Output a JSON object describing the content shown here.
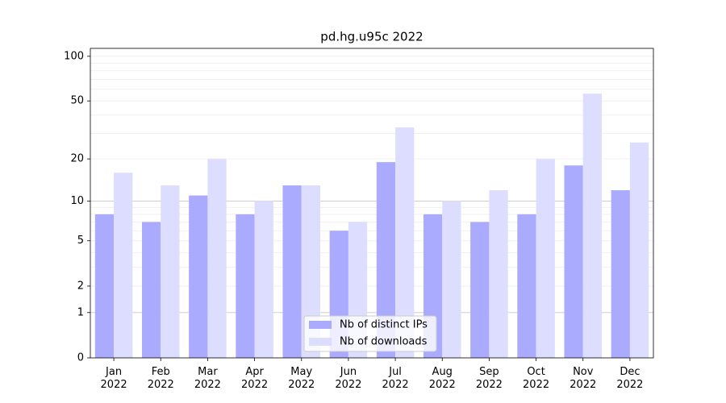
{
  "chart_data": {
    "type": "bar",
    "title": "pd.hg.u95c 2022",
    "categories": [
      "Jan 2022",
      "Feb 2022",
      "Mar 2022",
      "Apr 2022",
      "May 2022",
      "Jun 2022",
      "Jul 2022",
      "Aug 2022",
      "Sep 2022",
      "Oct 2022",
      "Nov 2022",
      "Dec 2022"
    ],
    "series": [
      {
        "name": "Nb of distinct IPs",
        "color": "#aaaaff",
        "values": [
          8,
          7,
          11,
          8,
          13,
          6,
          19,
          8,
          7,
          8,
          18,
          12
        ]
      },
      {
        "name": "Nb of downloads",
        "color": "#ddddff",
        "values": [
          16,
          13,
          20,
          10,
          13,
          7,
          33,
          10,
          12,
          20,
          56,
          26
        ]
      }
    ],
    "yscale": "log1p",
    "ylim": [
      0,
      113
    ],
    "yticks": [
      0,
      1,
      2,
      5,
      10,
      20,
      50,
      100
    ],
    "minor_yticks": [
      3,
      4,
      6,
      7,
      8,
      9,
      30,
      40,
      60,
      70,
      80,
      90
    ],
    "grid": true,
    "legend": "lower center"
  }
}
